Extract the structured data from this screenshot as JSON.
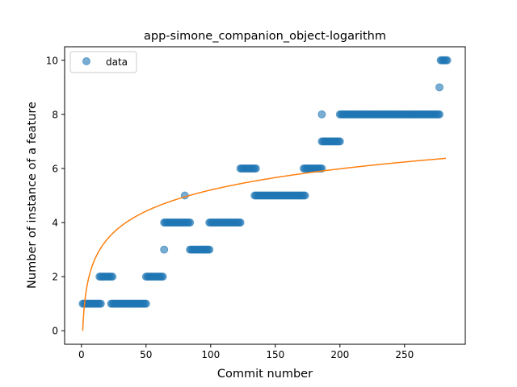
{
  "chart_data": {
    "type": "scatter",
    "title": "app-simone_companion_object-logarithm",
    "xlabel": "Commit number",
    "ylabel": "Number of instance of a feature",
    "xlim": [
      -13,
      297
    ],
    "ylim": [
      -0.5,
      10.5
    ],
    "xticks": [
      0,
      50,
      100,
      150,
      200,
      250
    ],
    "yticks": [
      0,
      2,
      4,
      6,
      8,
      10
    ],
    "legend": {
      "position": "top-left",
      "entries": [
        "data"
      ]
    },
    "grid": false,
    "colors": {
      "data": "#1f77b4",
      "fit": "#ff7f0e"
    },
    "series": [
      {
        "name": "data",
        "kind": "scatter",
        "segments": [
          {
            "x_start": 1,
            "x_end": 15,
            "y": 1
          },
          {
            "x_start": 14,
            "x_end": 24,
            "y": 2
          },
          {
            "x_start": 23,
            "x_end": 50,
            "y": 1
          },
          {
            "x_start": 50,
            "x_end": 63,
            "y": 2
          },
          {
            "x": 64,
            "y": 3
          },
          {
            "x_start": 64,
            "x_end": 84,
            "y": 4
          },
          {
            "x": 80,
            "y": 5
          },
          {
            "x_start": 84,
            "x_end": 99,
            "y": 3
          },
          {
            "x_start": 99,
            "x_end": 123,
            "y": 4
          },
          {
            "x_start": 123,
            "x_end": 135,
            "y": 6
          },
          {
            "x_start": 134,
            "x_end": 173,
            "y": 5
          },
          {
            "x_start": 172,
            "x_end": 186,
            "y": 6
          },
          {
            "x": 186,
            "y": 8
          },
          {
            "x_start": 186,
            "x_end": 200,
            "y": 7
          },
          {
            "x_start": 200,
            "x_end": 277,
            "y": 8
          },
          {
            "x": 277,
            "y": 9
          },
          {
            "x_start": 278,
            "x_end": 283,
            "y": 10
          }
        ]
      },
      {
        "kind": "line",
        "function": "y = 1.13 * ln(x)",
        "x_range": [
          1,
          282
        ]
      }
    ]
  }
}
